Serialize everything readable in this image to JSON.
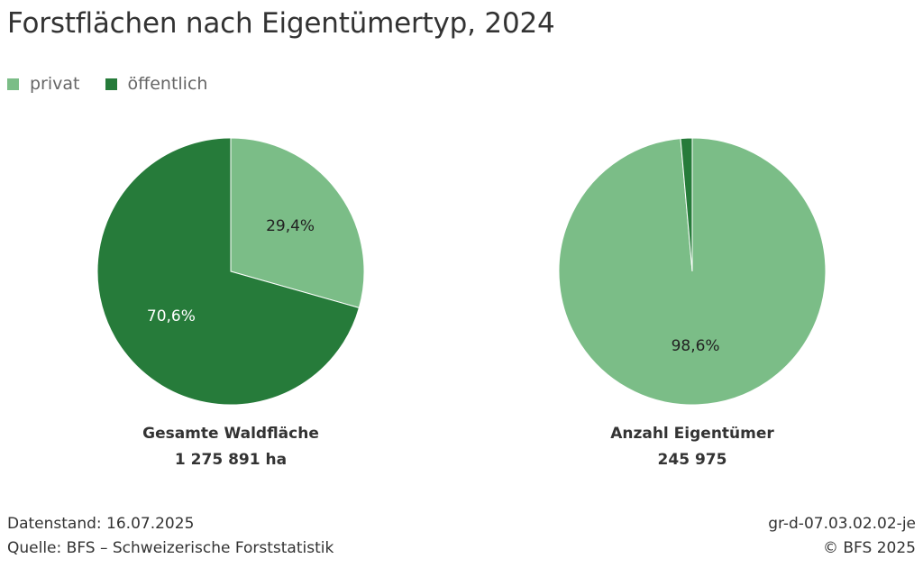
{
  "title": "Forstflächen nach Eigentümertyp, 2024",
  "legend": [
    {
      "label": "privat",
      "color": "#7bbd87"
    },
    {
      "label": "öffentlich",
      "color": "#267b3a"
    }
  ],
  "chart_data": [
    {
      "type": "pie",
      "caption": "Gesamte Waldfläche",
      "total": "1 275 891 ha",
      "slices": [
        {
          "name": "privat",
          "value": 29.4,
          "label": "29,4%",
          "color": "#7bbd87"
        },
        {
          "name": "öffentlich",
          "value": 70.6,
          "label": "70,6%",
          "color": "#267b3a"
        }
      ]
    },
    {
      "type": "pie",
      "caption": "Anzahl Eigentümer",
      "total": "245 975",
      "slices": [
        {
          "name": "privat",
          "value": 98.6,
          "label": "98,6%",
          "color": "#7bbd87"
        },
        {
          "name": "öffentlich",
          "value": 1.4,
          "label": "",
          "color": "#267b3a"
        }
      ]
    }
  ],
  "footer": {
    "datenstand": "Datenstand: 16.07.2025",
    "quelle": "Quelle: BFS – Schweizerische Forststatistik",
    "code": "gr-d-07.03.02.02-je",
    "copyright": "© BFS 2025"
  }
}
